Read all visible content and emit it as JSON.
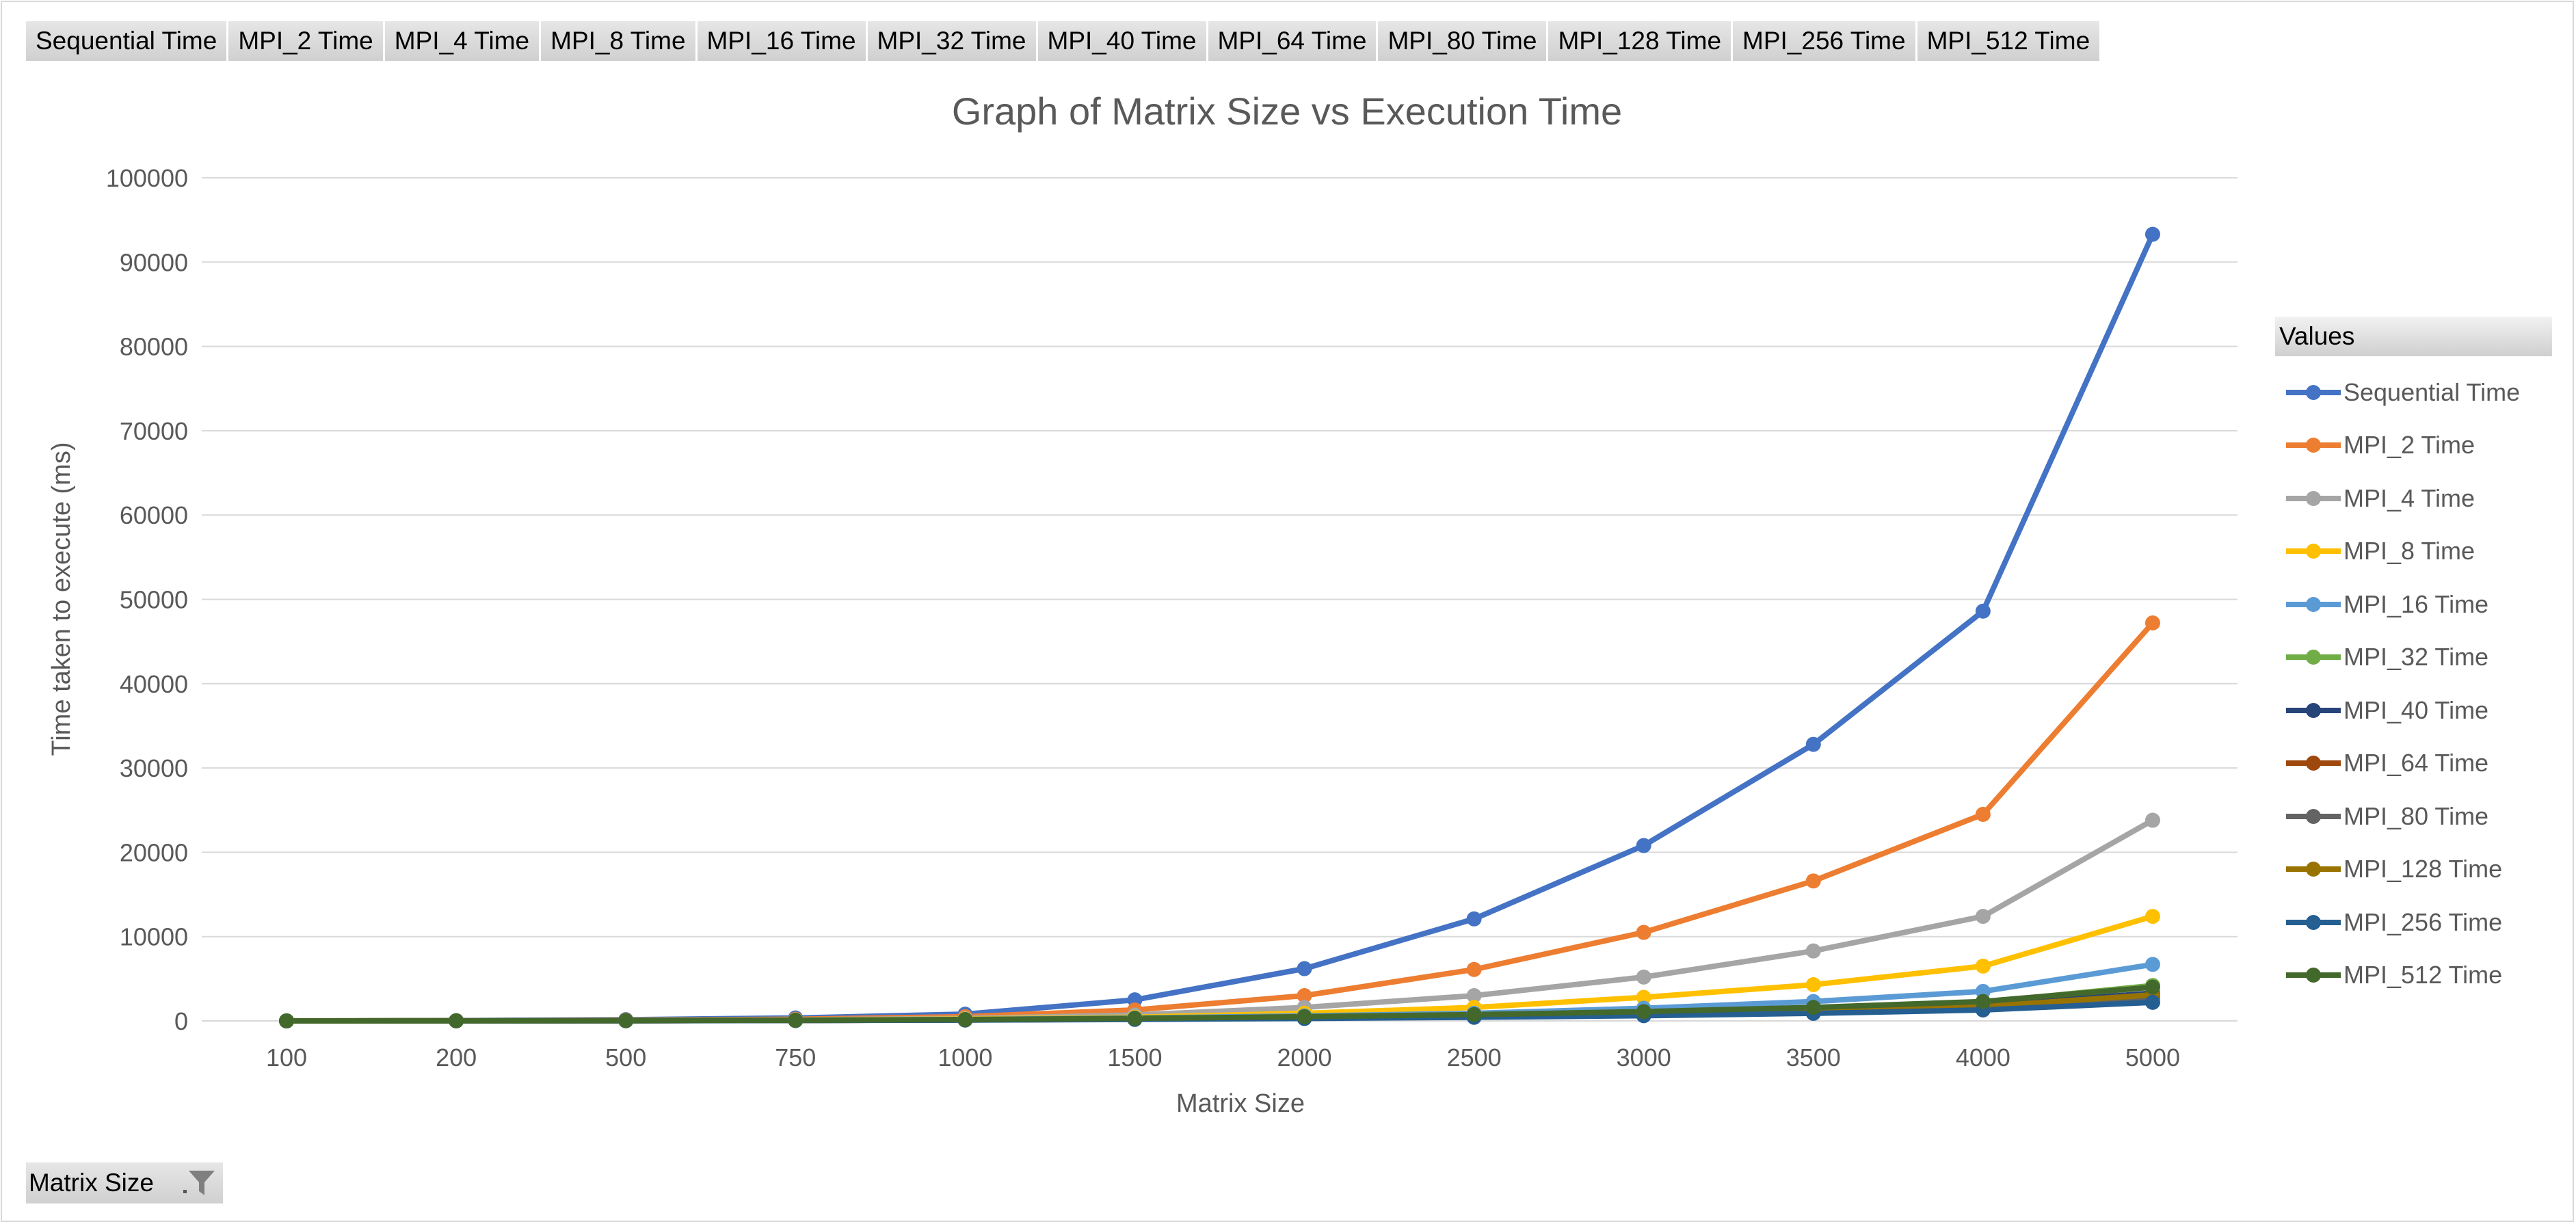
{
  "field_buttons": [
    "Sequential Time",
    "MPI_2 Time",
    "MPI_4 Time",
    "MPI_8 Time",
    "MPI_16 Time",
    "MPI_32 Time",
    "MPI_40 Time",
    "MPI_64 Time",
    "MPI_80 Time",
    "MPI_128 Time",
    "MPI_256 Time",
    "MPI_512 Time"
  ],
  "axis_filter": {
    "label": "Matrix Size",
    "icon": "filter-funnel-icon"
  },
  "legend": {
    "title": "Values"
  },
  "chart_data": {
    "type": "line",
    "title": "Graph of Matrix Size vs Execution Time",
    "xlabel": "Matrix Size",
    "ylabel": "Time taken to execute (ms)",
    "categories": [
      "100",
      "200",
      "500",
      "750",
      "1000",
      "1500",
      "2000",
      "2500",
      "3000",
      "3500",
      "4000",
      "5000"
    ],
    "ylim": [
      0,
      100000
    ],
    "yticks": [
      "0",
      "10000",
      "20000",
      "30000",
      "40000",
      "50000",
      "60000",
      "70000",
      "80000",
      "90000",
      "100000"
    ],
    "grid": true,
    "legend_position": "right",
    "series": [
      {
        "name": "Sequential Time",
        "color": "#4472C4",
        "values": [
          3,
          30,
          150,
          350,
          800,
          2500,
          6200,
          12100,
          20800,
          32800,
          48600,
          93300
        ]
      },
      {
        "name": "MPI_2 Time",
        "color": "#ED7D31",
        "values": [
          3,
          20,
          90,
          200,
          500,
          1300,
          3000,
          6100,
          10500,
          16600,
          24500,
          47200
        ]
      },
      {
        "name": "MPI_4 Time",
        "color": "#A5A5A5",
        "values": [
          2,
          15,
          60,
          130,
          300,
          700,
          1600,
          3000,
          5200,
          8300,
          12400,
          23800
        ]
      },
      {
        "name": "MPI_8 Time",
        "color": "#FFC000",
        "values": [
          2,
          12,
          45,
          100,
          220,
          450,
          900,
          1600,
          2800,
          4300,
          6500,
          12400
        ]
      },
      {
        "name": "MPI_16 Time",
        "color": "#5B9BD5",
        "values": [
          2,
          10,
          40,
          80,
          170,
          350,
          600,
          900,
          1500,
          2300,
          3500,
          6700
        ]
      },
      {
        "name": "MPI_32 Time",
        "color": "#70AD47",
        "values": [
          2,
          10,
          35,
          70,
          150,
          280,
          450,
          700,
          1000,
          1500,
          2200,
          4200
        ]
      },
      {
        "name": "MPI_40 Time",
        "color": "#264478",
        "values": [
          2,
          9,
          30,
          60,
          120,
          230,
          380,
          580,
          850,
          1200,
          1800,
          3300
        ]
      },
      {
        "name": "MPI_64 Time",
        "color": "#9E480E",
        "values": [
          2,
          9,
          28,
          55,
          110,
          210,
          350,
          520,
          750,
          1100,
          1600,
          2900
        ]
      },
      {
        "name": "MPI_80 Time",
        "color": "#636363",
        "values": [
          2,
          9,
          28,
          55,
          110,
          200,
          330,
          500,
          720,
          1050,
          1550,
          2800
        ]
      },
      {
        "name": "MPI_128 Time",
        "color": "#997300",
        "values": [
          2,
          9,
          30,
          60,
          120,
          220,
          360,
          550,
          800,
          1150,
          1700,
          3100
        ]
      },
      {
        "name": "MPI_256 Time",
        "color": "#255E91",
        "values": [
          2,
          8,
          25,
          50,
          100,
          180,
          290,
          430,
          620,
          900,
          1300,
          2200
        ]
      },
      {
        "name": "MPI_512 Time",
        "color": "#43682B",
        "values": [
          3,
          10,
          40,
          80,
          160,
          300,
          500,
          750,
          1100,
          1600,
          2300,
          4000
        ]
      }
    ]
  }
}
